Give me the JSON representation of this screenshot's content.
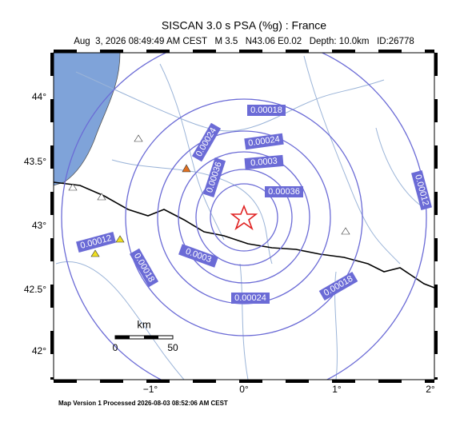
{
  "header": {
    "title": "SISCAN 3.0 s PSA (%g) : France",
    "subtitle": "Aug  3, 2026 08:49:49 AM CEST   M 3.5   N43.06 E0.02   Depth: 10.0km   ID:26778"
  },
  "map": {
    "lat_ticks": [
      "44°",
      "43.5°",
      "43°",
      "42.5°",
      "42°"
    ],
    "lon_ticks": [
      "−1°",
      "0°",
      "1°",
      "2°"
    ],
    "contour_labels": [
      "0.00018",
      "0.00024",
      "0.0003",
      "0.00036",
      "0.00024",
      "0.00036",
      "0.00012",
      "0.00012",
      "0.0003",
      "0.00018",
      "0.00024",
      "0.00018"
    ],
    "scale_bar": {
      "unit": "km",
      "start": "0",
      "end": "50"
    }
  },
  "footer": {
    "text": "Map Version 1 Processed 2026-08-03 08:52:06 AM CEST"
  }
}
